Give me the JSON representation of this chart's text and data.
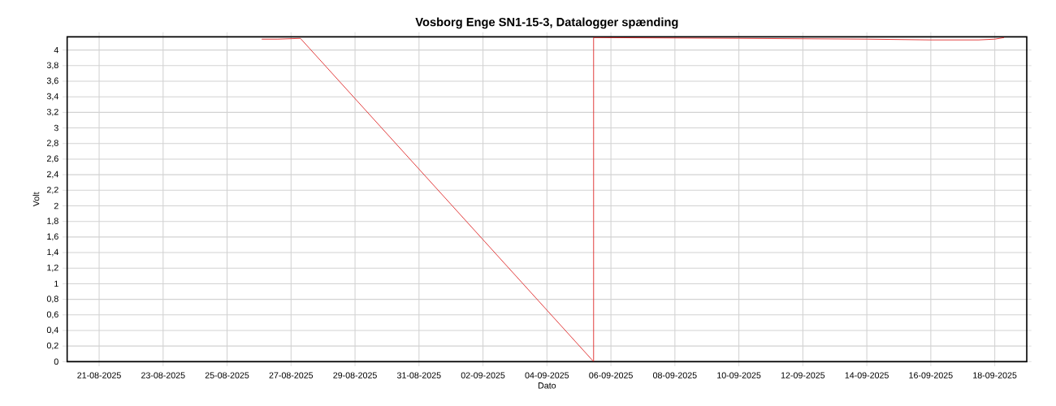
{
  "chart_data": {
    "type": "line",
    "title": "Vosborg Enge SN1-15-3, Datalogger spænding",
    "xlabel": "Dato",
    "ylabel": "Volt",
    "x": [
      "2025-08-26T02:00",
      "2025-08-26T14:00",
      "2025-08-27T07:00",
      "2025-09-05T11:00",
      "2025-09-05T11:00",
      "2025-09-10T00:00",
      "2025-09-14T00:00",
      "2025-09-16T00:00",
      "2025-09-17T12:00",
      "2025-09-18T00:00",
      "2025-09-18T07:00"
    ],
    "series": [
      {
        "color": "#e03030",
        "values": [
          4.14,
          4.14,
          4.15,
          0,
          4.16,
          4.15,
          4.14,
          4.13,
          4.13,
          4.14,
          4.16
        ]
      }
    ],
    "xlim": [
      "2025-08-20",
      "2025-09-19"
    ],
    "xticks": [
      {
        "value": "2025-08-21",
        "label": "21-08-2025"
      },
      {
        "value": "2025-08-23",
        "label": "23-08-2025"
      },
      {
        "value": "2025-08-25",
        "label": "25-08-2025"
      },
      {
        "value": "2025-08-27",
        "label": "27-08-2025"
      },
      {
        "value": "2025-08-29",
        "label": "29-08-2025"
      },
      {
        "value": "2025-08-31",
        "label": "31-08-2025"
      },
      {
        "value": "2025-09-02",
        "label": "02-09-2025"
      },
      {
        "value": "2025-09-04",
        "label": "04-09-2025"
      },
      {
        "value": "2025-09-06",
        "label": "06-09-2025"
      },
      {
        "value": "2025-09-08",
        "label": "08-09-2025"
      },
      {
        "value": "2025-09-10",
        "label": "10-09-2025"
      },
      {
        "value": "2025-09-12",
        "label": "12-09-2025"
      },
      {
        "value": "2025-09-14",
        "label": "14-09-2025"
      },
      {
        "value": "2025-09-16",
        "label": "16-09-2025"
      },
      {
        "value": "2025-09-18",
        "label": "18-09-2025"
      }
    ],
    "ylim": [
      0,
      4.17
    ],
    "yticks": [
      0,
      {
        "value": 0.2,
        "label": "0,2"
      },
      {
        "value": 0.4,
        "label": "0,4"
      },
      {
        "value": 0.6,
        "label": "0,6"
      },
      {
        "value": 0.8,
        "label": "0,8"
      },
      1,
      {
        "value": 1.2,
        "label": "1,2"
      },
      {
        "value": 1.4,
        "label": "1,4"
      },
      {
        "value": 1.6,
        "label": "1,6"
      },
      {
        "value": 1.8,
        "label": "1,8"
      },
      2,
      {
        "value": 2.2,
        "label": "2,2"
      },
      {
        "value": 2.4,
        "label": "2,4"
      },
      {
        "value": 2.6,
        "label": "2,6"
      },
      {
        "value": 2.8,
        "label": "2,8"
      },
      3,
      {
        "value": 3.2,
        "label": "3,2"
      },
      {
        "value": 3.4,
        "label": "3,4"
      },
      {
        "value": 3.6,
        "label": "3,6"
      },
      {
        "value": 3.8,
        "label": "3,8"
      },
      4
    ],
    "grid": true,
    "marker": "none",
    "line_style": "solid"
  }
}
